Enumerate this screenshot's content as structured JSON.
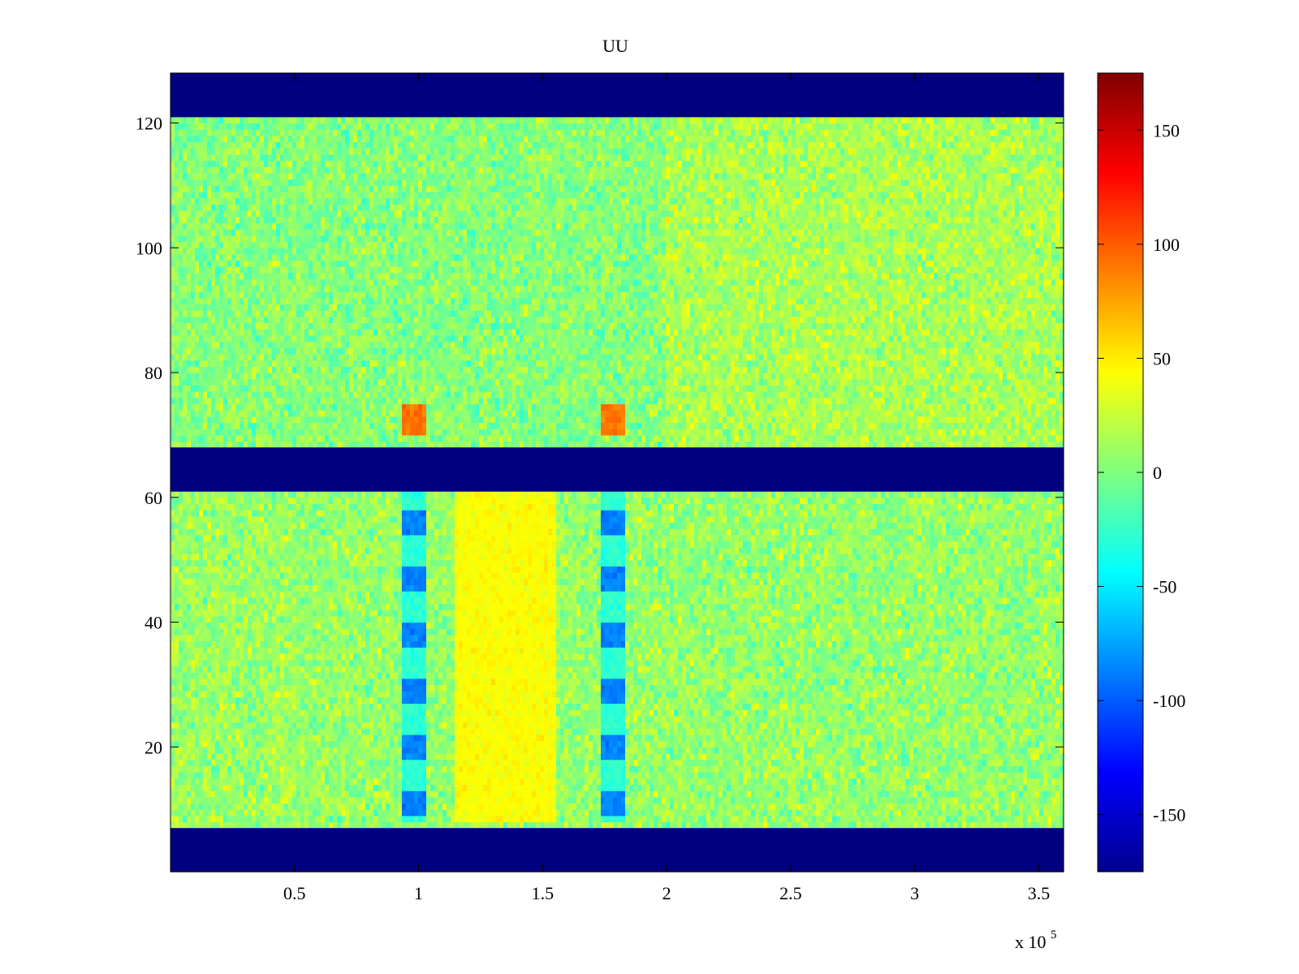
{
  "chart_data": {
    "type": "heatmap",
    "title": "UU",
    "colormap": "jet",
    "x_multiplier_label": "x 10",
    "x_multiplier_exponent": "5",
    "xlim": [
      0,
      3.6
    ],
    "ylim": [
      0,
      128
    ],
    "x_ticks": [
      0.5,
      1,
      1.5,
      2,
      2.5,
      3,
      3.5
    ],
    "x_tick_labels": [
      "0.5",
      "1",
      "1.5",
      "2",
      "2.5",
      "3",
      "3.5"
    ],
    "y_ticks": [
      20,
      40,
      60,
      80,
      100,
      120
    ],
    "y_tick_labels": [
      "20",
      "40",
      "60",
      "80",
      "100",
      "120"
    ],
    "colorbar": {
      "range": [
        -175,
        175
      ],
      "ticks": [
        150,
        100,
        50,
        0,
        -50,
        -100,
        -150
      ],
      "tick_labels": [
        "150",
        "100",
        "50",
        "0",
        "-50",
        "-100",
        "-150"
      ]
    },
    "bands": [
      {
        "y_range": [
          0,
          7
        ],
        "value": -175
      },
      {
        "y_range": [
          61,
          68
        ],
        "value": -175
      },
      {
        "y_range": [
          121,
          128
        ],
        "value": -175
      }
    ],
    "features": [
      {
        "x_range": [
          0.94,
          1.03
        ],
        "y_range": [
          8,
          61
        ],
        "value": -90
      },
      {
        "x_range": [
          1.73,
          1.83
        ],
        "y_range": [
          8,
          61
        ],
        "value": -90
      },
      {
        "x_range": [
          1.15,
          1.55
        ],
        "y_range": [
          8,
          61
        ],
        "value": 40
      },
      {
        "x_range": [
          0.94,
          1.03
        ],
        "y_range": [
          70,
          75
        ],
        "value": 90
      },
      {
        "x_range": [
          1.73,
          1.83
        ],
        "y_range": [
          70,
          75
        ],
        "value": 90
      }
    ]
  }
}
